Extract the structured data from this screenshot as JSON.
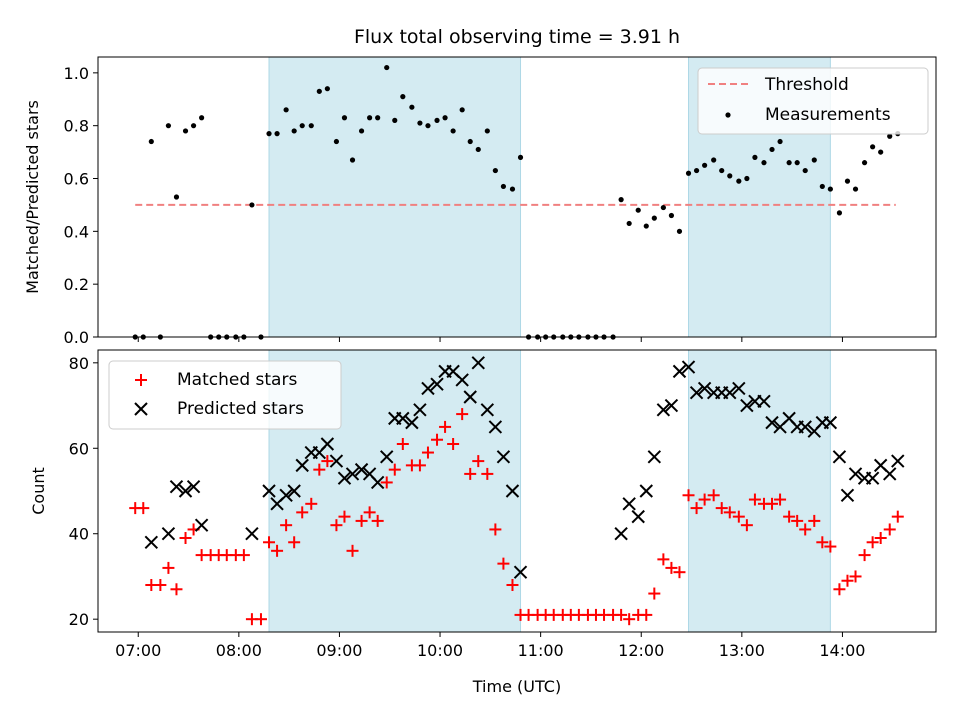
{
  "chart_data": [
    {
      "type": "scatter",
      "title": "Flux total observing time = 3.91 h",
      "ylabel": "Matched/Predicted stars",
      "xlim": [
        6.6,
        14.93
      ],
      "ylim": [
        0,
        1.06
      ],
      "yticks": [
        "0.0",
        "0.2",
        "0.4",
        "0.6",
        "0.8",
        "1.0"
      ],
      "shaded_spans": [
        [
          8.3,
          10.8
        ],
        [
          12.47,
          13.88
        ]
      ],
      "series": [
        {
          "name": "Threshold",
          "style": "dashed-line",
          "color": "#f08080",
          "x": [
            6.97,
            14.53
          ],
          "y": [
            0.5,
            0.5
          ]
        },
        {
          "name": "Measurements",
          "style": "dot",
          "color": "#000000",
          "x": [
            6.97,
            7.05,
            7.13,
            7.22,
            7.3,
            7.38,
            7.47,
            7.55,
            7.63,
            7.72,
            7.8,
            7.88,
            7.97,
            8.05,
            8.13,
            8.22,
            8.3,
            8.38,
            8.47,
            8.55,
            8.63,
            8.72,
            8.8,
            8.88,
            8.97,
            9.05,
            9.13,
            9.22,
            9.3,
            9.38,
            9.47,
            9.55,
            9.63,
            9.72,
            9.8,
            9.88,
            9.97,
            10.05,
            10.13,
            10.22,
            10.3,
            10.38,
            10.47,
            10.55,
            10.63,
            10.72,
            10.8,
            10.88,
            10.97,
            11.05,
            11.13,
            11.22,
            11.3,
            11.38,
            11.47,
            11.55,
            11.63,
            11.72,
            11.8,
            11.88,
            11.97,
            12.05,
            12.13,
            12.22,
            12.3,
            12.38,
            12.47,
            12.55,
            12.63,
            12.72,
            12.8,
            12.88,
            12.97,
            13.05,
            13.13,
            13.22,
            13.3,
            13.38,
            13.47,
            13.55,
            13.63,
            13.72,
            13.8,
            13.88,
            13.97,
            14.05,
            14.13,
            14.22,
            14.3,
            14.38,
            14.47,
            14.55
          ],
          "y": [
            0.0,
            0.0,
            0.74,
            0.0,
            0.8,
            0.53,
            0.78,
            0.8,
            0.83,
            0.0,
            0.0,
            0.0,
            0.0,
            0.0,
            0.5,
            0.0,
            0.77,
            0.77,
            0.86,
            0.78,
            0.8,
            0.8,
            0.93,
            0.94,
            0.74,
            0.83,
            0.67,
            0.78,
            0.83,
            0.83,
            1.02,
            0.82,
            0.91,
            0.87,
            0.81,
            0.8,
            0.82,
            0.83,
            0.78,
            0.86,
            0.74,
            0.71,
            0.78,
            0.63,
            0.57,
            0.56,
            0.68,
            0.0,
            0.0,
            0.0,
            0.0,
            0.0,
            0.0,
            0.0,
            0.0,
            0.0,
            0.0,
            0.0,
            0.52,
            0.43,
            0.48,
            0.42,
            0.45,
            0.49,
            0.46,
            0.4,
            0.62,
            0.63,
            0.65,
            0.67,
            0.63,
            0.61,
            0.59,
            0.6,
            0.68,
            0.66,
            0.71,
            0.74,
            0.66,
            0.66,
            0.63,
            0.67,
            0.57,
            0.56,
            0.47,
            0.59,
            0.56,
            0.66,
            0.72,
            0.7,
            0.76,
            0.77
          ]
        }
      ],
      "legend": {
        "position": "top-right",
        "entries": [
          "Threshold",
          "Measurements"
        ]
      }
    },
    {
      "type": "scatter",
      "xlabel": "Time (UTC)",
      "ylabel": "Count",
      "xlim": [
        6.6,
        14.93
      ],
      "ylim": [
        17,
        83
      ],
      "yticks": [
        "20",
        "40",
        "60",
        "80"
      ],
      "xticks": [
        "07:00",
        "08:00",
        "09:00",
        "10:00",
        "11:00",
        "12:00",
        "13:00",
        "14:00"
      ],
      "shaded_spans": [
        [
          8.3,
          10.8
        ],
        [
          12.47,
          13.88
        ]
      ],
      "series": [
        {
          "name": "Matched stars",
          "marker": "plus",
          "color": "#ff0000",
          "x": [
            6.97,
            7.05,
            7.13,
            7.22,
            7.3,
            7.38,
            7.47,
            7.55,
            7.63,
            7.72,
            7.8,
            7.88,
            7.97,
            8.05,
            8.13,
            8.22,
            8.3,
            8.38,
            8.47,
            8.55,
            8.63,
            8.72,
            8.8,
            8.88,
            8.97,
            9.05,
            9.13,
            9.22,
            9.3,
            9.38,
            9.47,
            9.55,
            9.63,
            9.72,
            9.8,
            9.88,
            9.97,
            10.05,
            10.13,
            10.22,
            10.3,
            10.38,
            10.47,
            10.55,
            10.63,
            10.72,
            10.8,
            10.88,
            10.97,
            11.05,
            11.13,
            11.22,
            11.3,
            11.38,
            11.47,
            11.55,
            11.63,
            11.72,
            11.8,
            11.88,
            11.97,
            12.05,
            12.13,
            12.22,
            12.3,
            12.38,
            12.47,
            12.55,
            12.63,
            12.72,
            12.8,
            12.88,
            12.97,
            13.05,
            13.13,
            13.22,
            13.3,
            13.38,
            13.47,
            13.55,
            13.63,
            13.72,
            13.8,
            13.88,
            13.97,
            14.05,
            14.13,
            14.22,
            14.3,
            14.38,
            14.47,
            14.55
          ],
          "y": [
            46,
            46,
            28,
            28,
            32,
            27,
            39,
            41,
            35,
            35,
            35,
            35,
            35,
            35,
            20,
            20,
            38,
            36,
            42,
            38,
            45,
            47,
            55,
            57,
            42,
            44,
            36,
            43,
            45,
            43,
            52,
            55,
            61,
            56,
            56,
            59,
            62,
            65,
            61,
            68,
            54,
            57,
            54,
            41,
            33,
            28,
            21,
            21,
            21,
            21,
            21,
            21,
            21,
            21,
            21,
            21,
            21,
            21,
            21,
            20,
            21,
            21,
            26,
            34,
            32,
            31,
            49,
            46,
            48,
            49,
            46,
            45,
            44,
            42,
            48,
            47,
            47,
            48,
            44,
            43,
            41,
            43,
            38,
            37,
            27,
            29,
            30,
            35,
            38,
            39,
            41,
            44
          ]
        },
        {
          "name": "Predicted stars",
          "marker": "x",
          "color": "#000000",
          "x": [
            7.13,
            7.3,
            7.38,
            7.47,
            7.55,
            7.63,
            8.13,
            8.3,
            8.38,
            8.47,
            8.55,
            8.63,
            8.72,
            8.8,
            8.88,
            8.97,
            9.05,
            9.13,
            9.22,
            9.3,
            9.38,
            9.47,
            9.55,
            9.63,
            9.72,
            9.8,
            9.88,
            9.97,
            10.05,
            10.13,
            10.22,
            10.3,
            10.38,
            10.47,
            10.55,
            10.63,
            10.72,
            10.8,
            11.8,
            11.88,
            11.97,
            12.05,
            12.13,
            12.22,
            12.3,
            12.38,
            12.47,
            12.55,
            12.63,
            12.72,
            12.8,
            12.88,
            12.97,
            13.05,
            13.13,
            13.22,
            13.3,
            13.38,
            13.47,
            13.55,
            13.63,
            13.72,
            13.8,
            13.88,
            13.97,
            14.05,
            14.13,
            14.22,
            14.3,
            14.38,
            14.47,
            14.55
          ],
          "y": [
            38,
            40,
            51,
            50,
            51,
            42,
            40,
            50,
            47,
            49,
            50,
            56,
            59,
            59,
            61,
            57,
            53,
            54,
            55,
            54,
            52,
            58,
            67,
            67,
            66,
            69,
            74,
            75,
            78,
            78,
            76,
            72,
            80,
            69,
            65,
            58,
            50,
            31,
            40,
            47,
            44,
            50,
            58,
            69,
            70,
            78,
            79,
            73,
            74,
            73,
            73,
            73,
            74,
            70,
            71,
            71,
            66,
            65,
            67,
            65,
            65,
            64,
            66,
            66,
            58,
            49,
            54,
            53,
            53,
            56,
            54,
            57
          ]
        }
      ],
      "legend": {
        "position": "top-left",
        "entries": [
          "Matched stars",
          "Predicted stars"
        ]
      }
    }
  ]
}
